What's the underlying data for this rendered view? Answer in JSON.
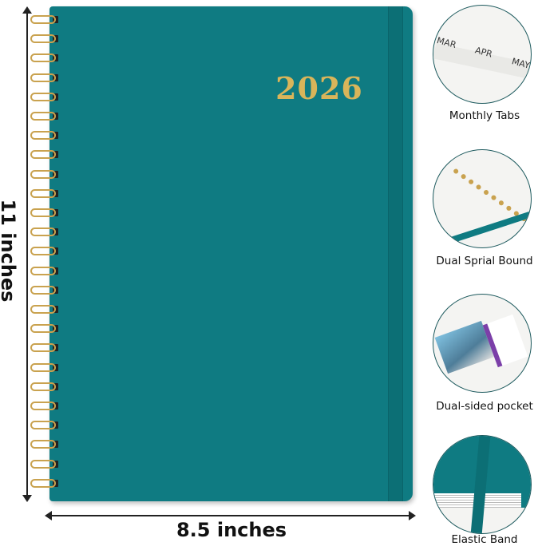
{
  "product": {
    "year": "2026",
    "cover_color": "#0f7b82",
    "foil_color": "#d9b55a"
  },
  "dimensions": {
    "height_label": "11 inches",
    "width_label": "8.5 inches"
  },
  "features": [
    {
      "label": "Monthly Tabs",
      "tabs": [
        "MAR",
        "APR",
        "MAY"
      ]
    },
    {
      "label": "Dual Sprial Bound"
    },
    {
      "label": "Dual-sided pocket"
    },
    {
      "label": "Elastic Band"
    }
  ]
}
